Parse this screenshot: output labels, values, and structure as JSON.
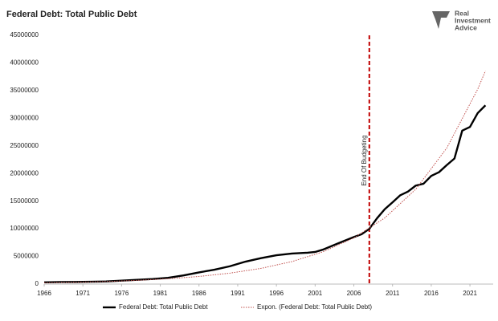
{
  "chart_data": {
    "type": "line",
    "title": "Federal Debt: Total Public Debt",
    "xlim": [
      1966,
      2024
    ],
    "xticks": [
      1966,
      1971,
      1976,
      1981,
      1986,
      1991,
      1996,
      2001,
      2006,
      2011,
      2016,
      2021
    ],
    "ylim": [
      0,
      45000000
    ],
    "yticks": [
      0,
      5000000,
      10000000,
      15000000,
      20000000,
      25000000,
      30000000,
      35000000,
      40000000,
      45000000
    ],
    "grid": false,
    "legend": "bottom",
    "series": [
      {
        "name": "Federal Debt: Total Public Debt",
        "color": "#000000",
        "style": "solid",
        "x": [
          1966,
          1968,
          1970,
          1972,
          1974,
          1976,
          1978,
          1980,
          1982,
          1984,
          1986,
          1988,
          1990,
          1992,
          1994,
          1996,
          1998,
          2000,
          2001,
          2002,
          2004,
          2006,
          2007,
          2008,
          2009,
          2010,
          2011,
          2012,
          2013,
          2014,
          2015,
          2016,
          2017,
          2018,
          2019,
          2020,
          2021,
          2022,
          2023
        ],
        "values": [
          320000,
          370000,
          380000,
          430000,
          480000,
          620000,
          770000,
          910000,
          1140000,
          1570000,
          2120000,
          2600000,
          3230000,
          4060000,
          4690000,
          5220000,
          5530000,
          5670000,
          5810000,
          6230000,
          7380000,
          8510000,
          9010000,
          9990000,
          11910000,
          13560000,
          14790000,
          16070000,
          16740000,
          17820000,
          18150000,
          19570000,
          20240000,
          21520000,
          22720000,
          27750000,
          28430000,
          30930000,
          32330000
        ]
      },
      {
        "name": "Expon. (Federal Debt: Total Public Debt)",
        "color": "#c0504d",
        "style": "dotted",
        "x": [
          1966,
          1970,
          1974,
          1978,
          1982,
          1986,
          1990,
          1994,
          1998,
          2002,
          2006,
          2010,
          2014,
          2018,
          2022,
          2023
        ],
        "values": [
          228000,
          327000,
          469000,
          672000,
          963000,
          1380000,
          1980000,
          2840000,
          4070000,
          5830000,
          8350000,
          11970000,
          17160000,
          24600000,
          35250000,
          38570000
        ]
      }
    ],
    "annotations": [
      {
        "x": 2008,
        "text": "End Of Budgeting",
        "color": "#c00000"
      }
    ]
  },
  "logo": [
    "Real",
    "Investment",
    "Advice"
  ]
}
